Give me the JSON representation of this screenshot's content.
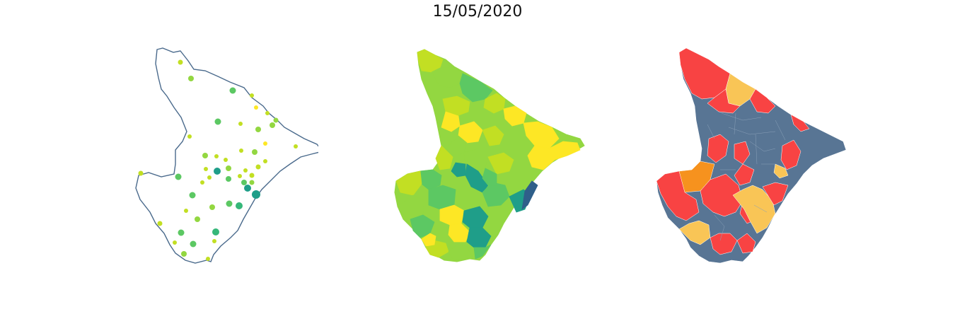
{
  "figure": {
    "title": "15/05/2020"
  },
  "colors": {
    "background": "#ffffff",
    "outline": "#4a6a8c",
    "viridis_scale": [
      "#2f5f8a",
      "#1f9e89",
      "#35b779",
      "#5cc863",
      "#93d741",
      "#c2df23",
      "#fde725"
    ],
    "class_red": "#f84343",
    "class_orange": "#f6921e",
    "class_yellow": "#f9c556",
    "class_slate": "#587594"
  },
  "panels": [
    {
      "id": "points",
      "kind": "bubble-map-on-outline"
    },
    {
      "id": "choropleth",
      "kind": "continuous-choropleth"
    },
    {
      "id": "classes",
      "kind": "categorical-choropleth"
    }
  ]
}
